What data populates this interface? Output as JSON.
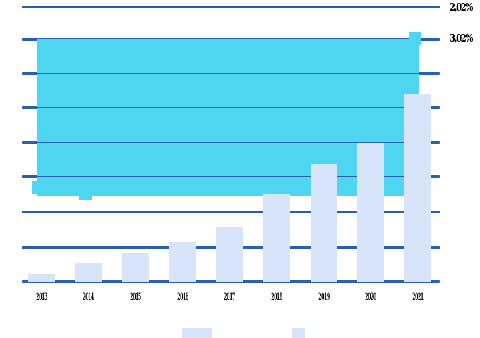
{
  "colors": {
    "area": "#4ed5f0",
    "bar": "#d7e4fa",
    "grid": "#2a5db4",
    "text": "#000000",
    "background": "#ffffff"
  },
  "chart_data": {
    "type": "bar",
    "title": "",
    "xlabel": "",
    "ylabel": "",
    "categories": [
      "2013",
      "2014",
      "2015",
      "2016",
      "2017",
      "2018",
      "2019",
      "2020",
      "2021"
    ],
    "ylim": [
      0,
      8
    ],
    "gridline_count": 9,
    "grid": true,
    "legend_position": "right-top",
    "right_axis_labels": [
      "2,02%",
      "3,02%"
    ],
    "series": [
      {
        "name": "bar-series",
        "type": "bar",
        "color": "#d7e4fa",
        "values": [
          0.23,
          0.53,
          0.84,
          1.17,
          1.6,
          2.54,
          3.42,
          4.03,
          5.46
        ]
      },
      {
        "name": "area-series",
        "type": "area",
        "color": "#4ed5f0",
        "band_top": 7.04,
        "band_bottom": 2.5,
        "markers": [
          {
            "category": "2013",
            "value": 2.74
          },
          {
            "category": "2014",
            "value": 2.56
          },
          {
            "category": "2021",
            "value": 7.06
          }
        ]
      }
    ],
    "bottom_legend_swatches": [
      {
        "color": "#d7e4fa"
      },
      {
        "color": "#d7e4fa"
      }
    ]
  }
}
